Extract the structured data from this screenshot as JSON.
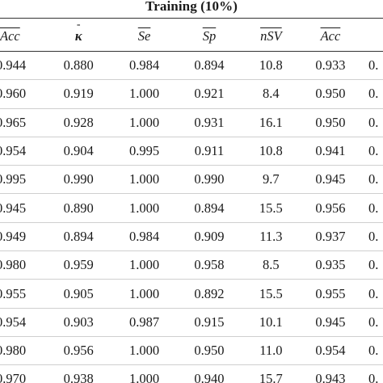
{
  "caption": "Training (10%)",
  "headers": [
    "Acc",
    "κ",
    "Se",
    "Sp",
    "nSV",
    "Acc"
  ],
  "rows": [
    [
      "0.944",
      "0.880",
      "0.984",
      "0.894",
      "10.8",
      "0.933",
      "0."
    ],
    [
      "0.960",
      "0.919",
      "1.000",
      "0.921",
      "8.4",
      "0.950",
      "0."
    ],
    [
      "0.965",
      "0.928",
      "1.000",
      "0.931",
      "16.1",
      "0.950",
      "0."
    ],
    [
      "0.954",
      "0.904",
      "0.995",
      "0.911",
      "10.8",
      "0.941",
      "0."
    ],
    [
      "0.995",
      "0.990",
      "1.000",
      "0.990",
      "9.7",
      "0.945",
      "0."
    ],
    [
      "0.945",
      "0.890",
      "1.000",
      "0.894",
      "15.5",
      "0.956",
      "0."
    ],
    [
      "0.949",
      "0.894",
      "0.984",
      "0.909",
      "11.3",
      "0.937",
      "0."
    ],
    [
      "0.980",
      "0.959",
      "1.000",
      "0.958",
      "8.5",
      "0.935",
      "0."
    ],
    [
      "0.955",
      "0.905",
      "1.000",
      "0.892",
      "15.5",
      "0.955",
      "0."
    ],
    [
      "0.954",
      "0.903",
      "0.987",
      "0.915",
      "10.1",
      "0.945",
      "0."
    ],
    [
      "0.980",
      "0.956",
      "1.000",
      "0.950",
      "11.0",
      "0.954",
      "0."
    ],
    [
      "0.970",
      "0.938",
      "1.000",
      "0.940",
      "15.7",
      "0.943",
      "0."
    ]
  ]
}
